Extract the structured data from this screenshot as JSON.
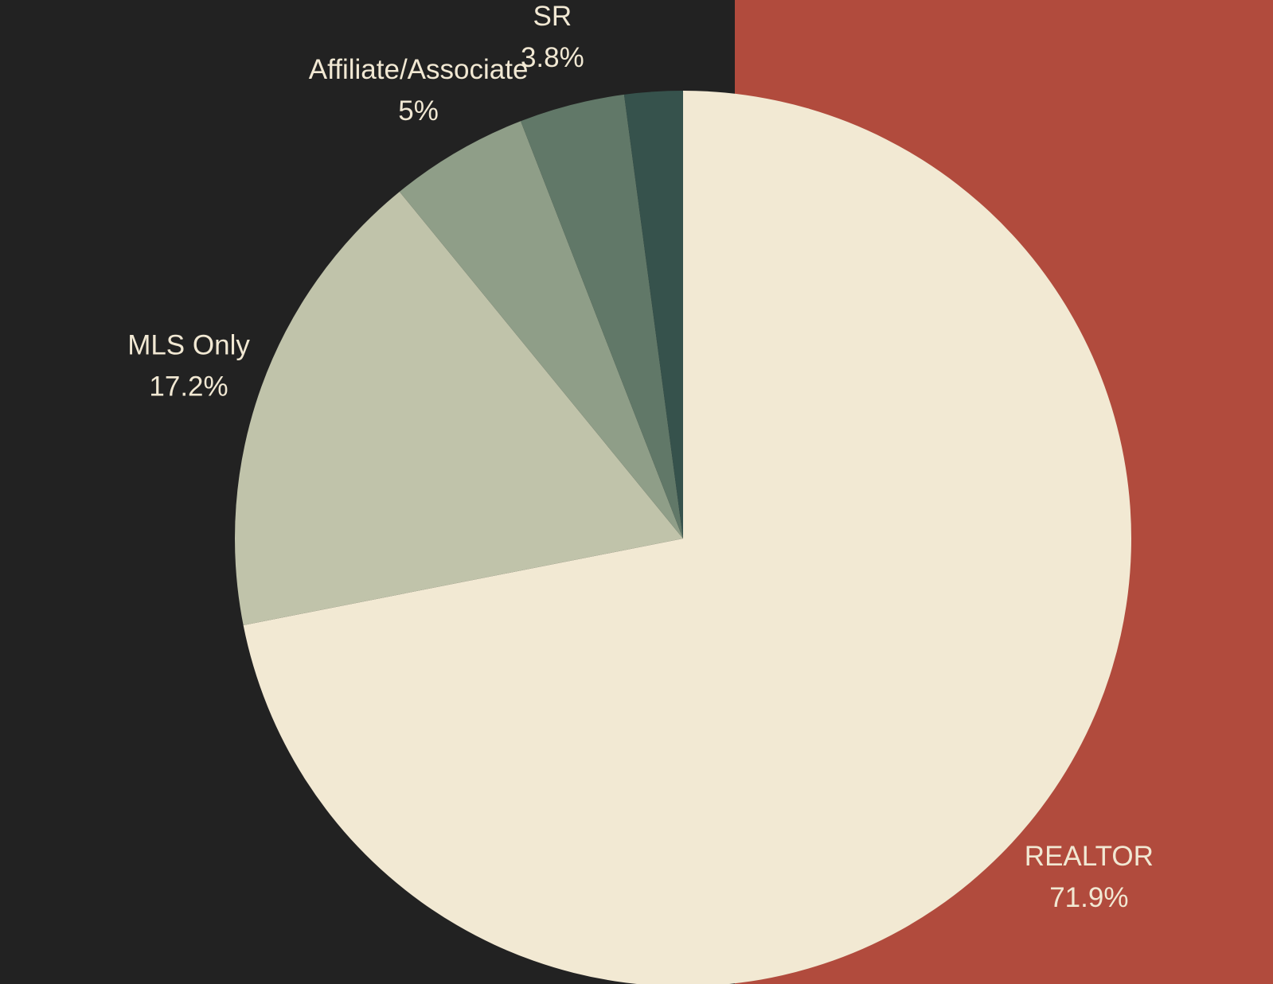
{
  "chart_data": {
    "type": "pie",
    "title": "",
    "slices": [
      {
        "label": "REALTOR",
        "value": 71.9,
        "display": "71.9%",
        "color": "#f2e9d3"
      },
      {
        "label": "MLS Only",
        "value": 17.2,
        "display": "17.2%",
        "color": "#c0c3aa"
      },
      {
        "label": "Affiliate/Associate",
        "value": 5,
        "display": "5%",
        "color": "#8f9e88"
      },
      {
        "label": "SR",
        "value": 3.8,
        "display": "3.8%",
        "color": "#617868"
      },
      {
        "label": "",
        "value": 2.1,
        "display": "",
        "color": "#36524c"
      }
    ],
    "start": "12 o'clock",
    "direction": "clockwise"
  },
  "colors": {
    "background": "#222222",
    "accent_panel": "#b14b3d",
    "label_text": "#f1e8d3"
  }
}
